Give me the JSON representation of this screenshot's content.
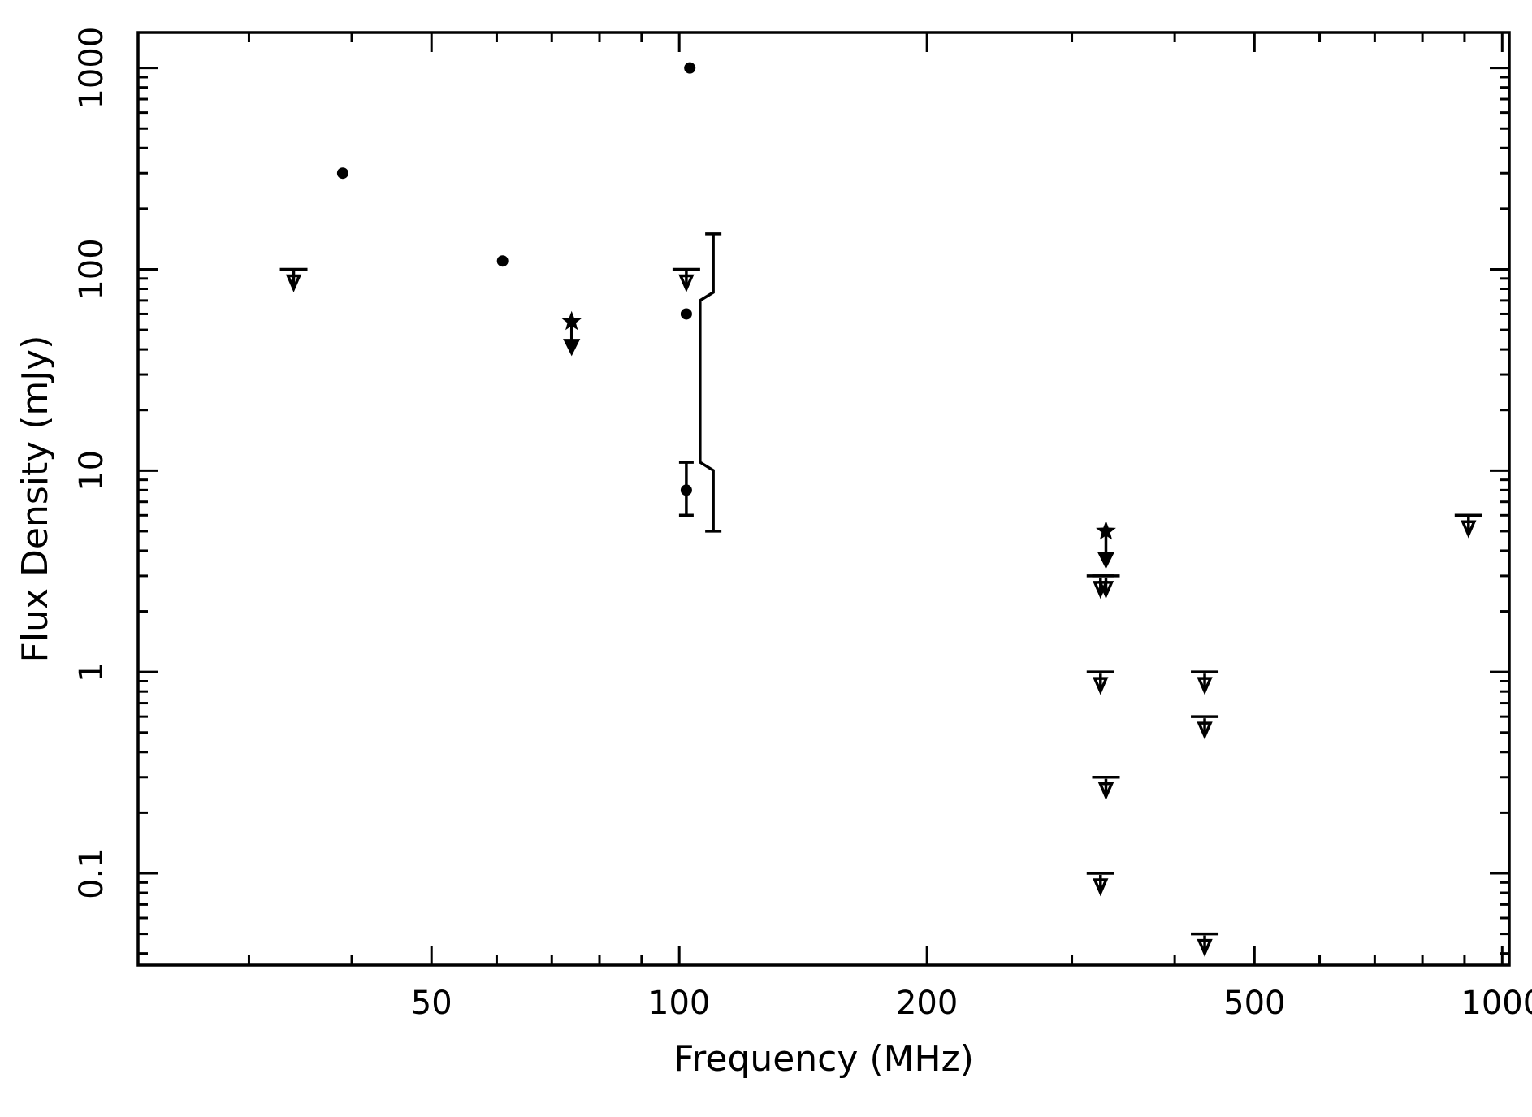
{
  "chart_data": {
    "type": "scatter",
    "title": "",
    "xlabel": "Frequency (MHz)",
    "ylabel": "Flux Density (mJy)",
    "xscale": "log",
    "yscale": "log",
    "xlim": [
      22,
      1020
    ],
    "ylim": [
      0.035,
      1500
    ],
    "grid": false,
    "x_tick_labels": [
      "50",
      "100",
      "200",
      "500",
      "1000"
    ],
    "y_tick_labels": [
      "0.1",
      "1",
      "10",
      "100",
      "1000"
    ],
    "x_major_ticks": [
      50,
      100,
      200,
      500,
      1000
    ],
    "x_minor_ticks": [
      30,
      40,
      60,
      70,
      80,
      90,
      300,
      400,
      600,
      700,
      800,
      900
    ],
    "y_major_ticks": [
      0.1,
      1,
      10,
      100,
      1000
    ],
    "y_minor_ticks": [
      0.04,
      0.05,
      0.06,
      0.07,
      0.08,
      0.09,
      0.2,
      0.3,
      0.4,
      0.5,
      0.6,
      0.7,
      0.8,
      0.9,
      2,
      3,
      4,
      5,
      6,
      7,
      8,
      9,
      20,
      30,
      40,
      50,
      60,
      70,
      80,
      90,
      200,
      300,
      400,
      500,
      600,
      700,
      800,
      900
    ],
    "detections": [
      {
        "x": 39,
        "y": 300
      },
      {
        "x": 61,
        "y": 110
      },
      {
        "x": 102,
        "y": 60
      },
      {
        "x": 103,
        "y": 1000
      }
    ],
    "upper_limits": [
      {
        "x": 34,
        "y": 100
      },
      {
        "x": 102,
        "y": 100
      },
      {
        "x": 325,
        "y": 3
      },
      {
        "x": 330,
        "y": 3
      },
      {
        "x": 325,
        "y": 1
      },
      {
        "x": 330,
        "y": 0.3
      },
      {
        "x": 325,
        "y": 0.1
      },
      {
        "x": 435,
        "y": 1
      },
      {
        "x": 435,
        "y": 0.6
      },
      {
        "x": 435,
        "y": 0.05
      },
      {
        "x": 910,
        "y": 6
      }
    ],
    "upper_limits_no_bar": [
      {
        "x": 102,
        "y": 100
      }
    ],
    "star_upper_limits": [
      {
        "x": 74,
        "y": 55,
        "arrow_to": 40
      },
      {
        "x": 330,
        "y": 5,
        "arrow_to": 3.5
      }
    ],
    "error_points": [
      {
        "x": 102,
        "y": 8,
        "low": 6,
        "high": 11
      }
    ],
    "range_bar": {
      "x": 110,
      "top": 150,
      "bottom": 5,
      "x_inner": 106,
      "y_upper_step": 70,
      "y_lower_step": 11
    }
  }
}
